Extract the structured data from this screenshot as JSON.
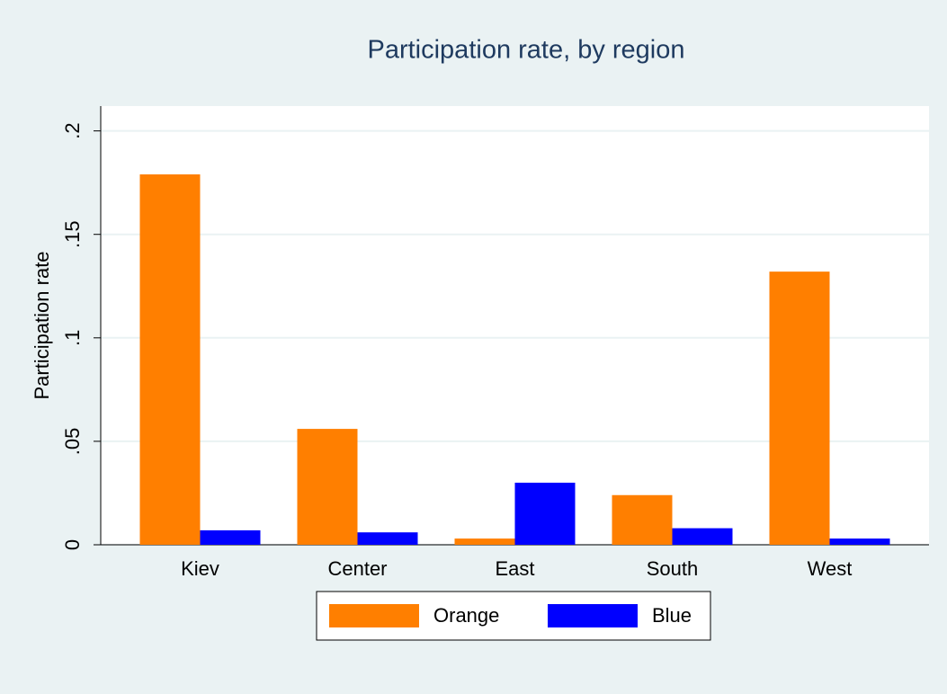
{
  "chart_data": {
    "type": "bar",
    "title": "Participation rate, by region",
    "y_label": "Participation rate",
    "categories": [
      "Kiev",
      "Center",
      "East",
      "South",
      "West"
    ],
    "series": [
      {
        "name": "Orange",
        "color": "#ff7f00",
        "values": [
          0.179,
          0.056,
          0.003,
          0.024,
          0.132
        ]
      },
      {
        "name": "Blue",
        "color": "#0000ff",
        "values": [
          0.007,
          0.006,
          0.03,
          0.008,
          0.003
        ]
      }
    ],
    "ylim": [
      0,
      0.212
    ],
    "yticks": [
      0,
      {
        "value": 0.05,
        "label": ".05"
      },
      {
        "value": 0.1,
        "label": ".1"
      },
      {
        "value": 0.15,
        "label": ".15"
      },
      {
        "value": 0.2,
        "label": ".2"
      }
    ],
    "grid": true,
    "legend": "bottom"
  }
}
